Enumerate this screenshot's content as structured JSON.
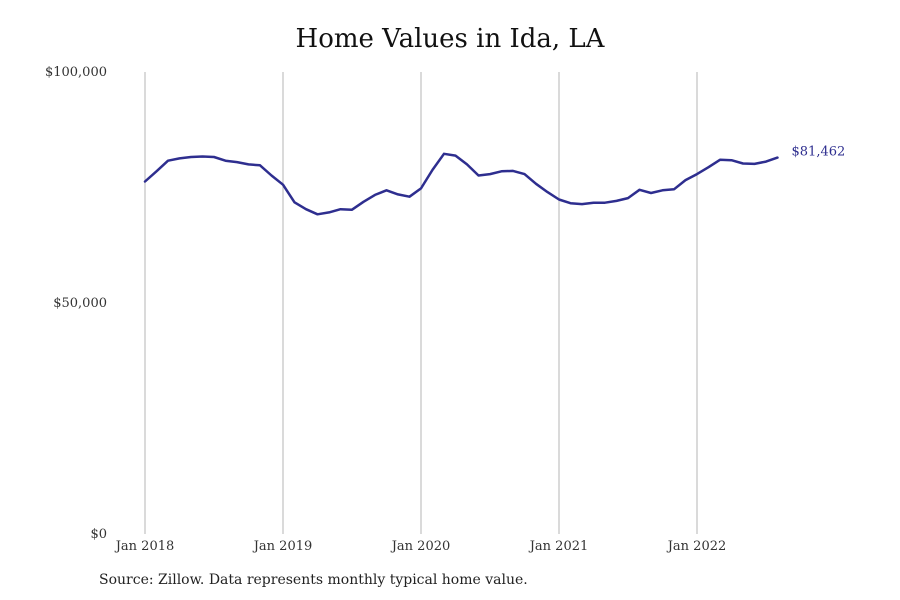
{
  "chart_data": {
    "type": "line",
    "title": "Home Values in Ida, LA",
    "xlabel": "",
    "ylabel": "",
    "ylim": [
      0,
      100000
    ],
    "y_ticks": [
      {
        "value": 0,
        "label": "$0"
      },
      {
        "value": 50000,
        "label": "$50,000"
      },
      {
        "value": 100000,
        "label": "$100,000"
      }
    ],
    "x_ticks": [
      {
        "date": "2018-01",
        "label": "Jan 2018"
      },
      {
        "date": "2019-01",
        "label": "Jan 2019"
      },
      {
        "date": "2020-01",
        "label": "Jan 2020"
      },
      {
        "date": "2021-01",
        "label": "Jan 2021"
      },
      {
        "date": "2022-01",
        "label": "Jan 2022"
      }
    ],
    "grid": "vertical lines at x ticks",
    "line_color": "#2e2e8f",
    "end_label": "$81,462",
    "series": [
      {
        "x": [
          "2018-01",
          "2018-02",
          "2018-03",
          "2018-04",
          "2018-05",
          "2018-06",
          "2018-07",
          "2018-08",
          "2018-09",
          "2018-10",
          "2018-11",
          "2018-12",
          "2019-01",
          "2019-02",
          "2019-03",
          "2019-04",
          "2019-05",
          "2019-06",
          "2019-07",
          "2019-08",
          "2019-09",
          "2019-10",
          "2019-11",
          "2019-12",
          "2020-01",
          "2020-02",
          "2020-03",
          "2020-04",
          "2020-05",
          "2020-06",
          "2020-07",
          "2020-08",
          "2020-09",
          "2020-10",
          "2020-11",
          "2020-12",
          "2021-01",
          "2021-02",
          "2021-03",
          "2021-04",
          "2021-05",
          "2021-06",
          "2021-07",
          "2021-08",
          "2021-09",
          "2021-10",
          "2021-11",
          "2021-12",
          "2022-01",
          "2022-02",
          "2022-03",
          "2022-04",
          "2022-05",
          "2022-06",
          "2022-07",
          "2022-08"
        ],
        "values": [
          76300,
          78500,
          80800,
          81300,
          81600,
          81700,
          81600,
          80800,
          80500,
          80000,
          79800,
          77600,
          75600,
          71800,
          70300,
          69200,
          69600,
          70300,
          70200,
          71900,
          73400,
          74400,
          73500,
          73000,
          74800,
          78800,
          82300,
          81900,
          80000,
          77600,
          77900,
          78500,
          78600,
          77900,
          75800,
          74000,
          72400,
          71600,
          71400,
          71700,
          71700,
          72100,
          72700,
          74500,
          73800,
          74400,
          74600,
          76600,
          77900,
          79400,
          81000,
          80900,
          80200,
          80100,
          80600,
          81462
        ]
      }
    ]
  },
  "footer": {
    "source": "Source: Zillow. Data represents monthly typical home value."
  }
}
